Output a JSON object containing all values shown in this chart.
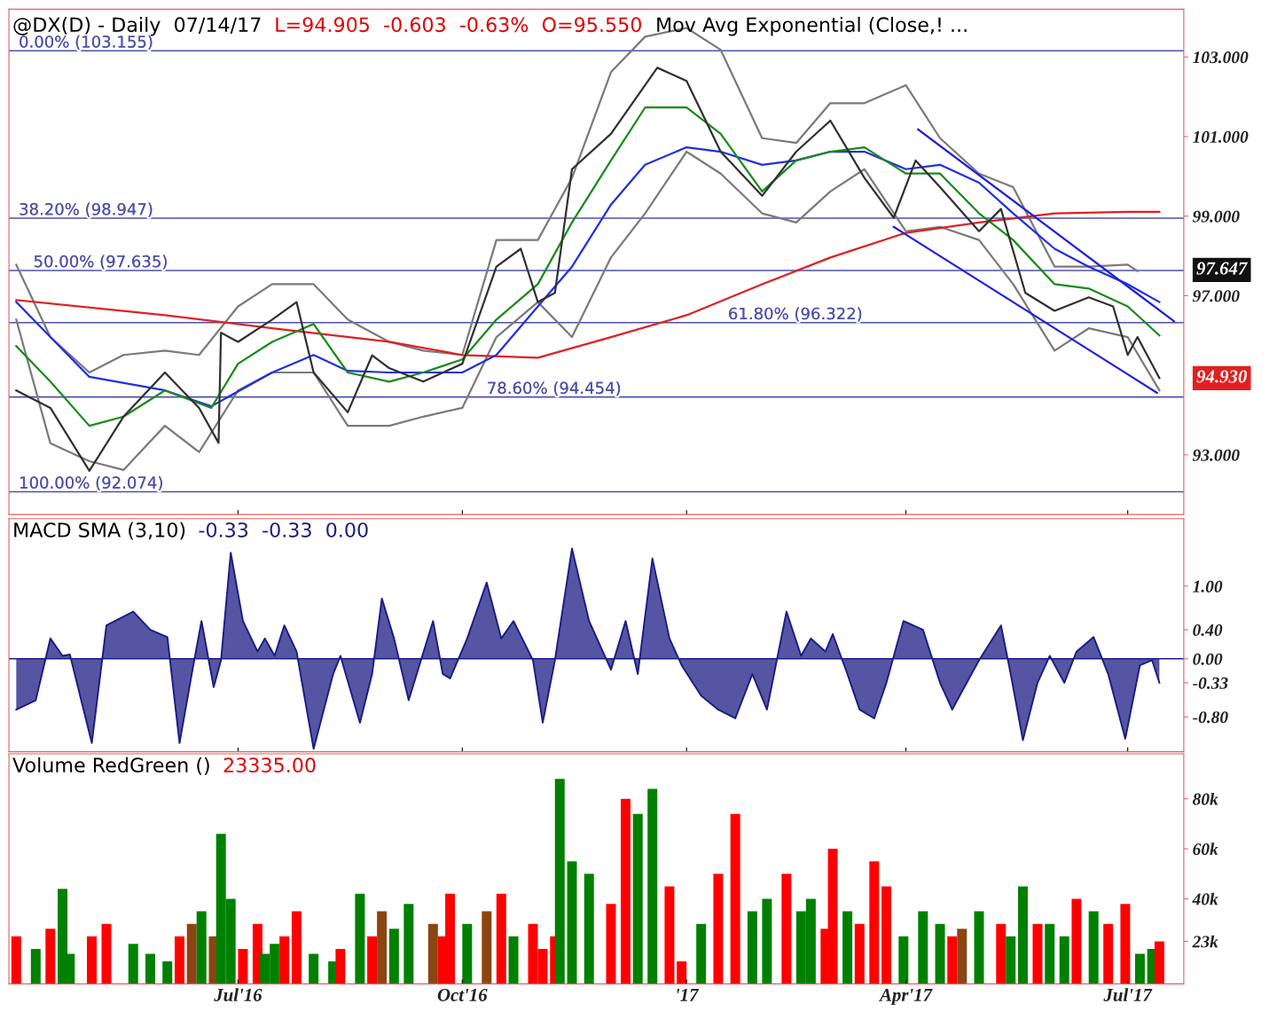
{
  "chart_data": [
    {
      "type": "line",
      "title": "@DX(D) - Daily  07/14/17",
      "subtitle": "L=94.905  -0.603  -0.63%  O=95.550",
      "tick_labels": "y",
      "grid": false,
      "legend": false,
      "xlim": [
        "2016-03-29",
        "2017-07-24"
      ],
      "xticks": [
        {
          "value": "2016-07-01",
          "label": null
        },
        {
          "value": "2016-10-01",
          "label": null
        },
        {
          "value": "2017-01-01",
          "label": null
        },
        {
          "value": "2017-04-01",
          "label": null
        },
        {
          "value": "2017-07-01",
          "label": null
        }
      ],
      "ylim": [
        91.5,
        104.2
      ],
      "yticks": [
        {
          "value": 93,
          "label": "93.000"
        },
        {
          "value": 97,
          "label": "97.000"
        },
        {
          "value": 99,
          "label": "99.000"
        },
        {
          "value": 101,
          "label": "101.000"
        },
        {
          "value": 103,
          "label": "103.000"
        }
      ],
      "annotations": [
        "Mov Avg Exponential (Close,! ...",
        {
          "text": "97.647",
          "x": "2017-07-14",
          "y": 97.647
        },
        {
          "text": "94.930",
          "x": "2017-07-14",
          "y": 94.93
        }
      ],
      "ref_lines": [
        {
          "axis": "y",
          "value": 103.155,
          "label": "0.00% (103.155)",
          "color": "#5050a8"
        },
        {
          "axis": "y",
          "value": 98.947,
          "label": "38.20% (98.947)",
          "color": "#5050a8"
        },
        {
          "axis": "y",
          "value": 97.635,
          "label": "50.00% (97.635)",
          "color": "#5050a8"
        },
        {
          "axis": "y",
          "value": 96.322,
          "label": "61.80% (96.322)",
          "color": "#5050a8"
        },
        {
          "axis": "y",
          "value": 94.454,
          "label": "78.60% (94.454)",
          "color": "#5050a8"
        },
        {
          "axis": "y",
          "value": 92.074,
          "label": "100.00% (92.074)",
          "color": "#5050a8"
        }
      ],
      "series": [
        {
          "color": "#7a7a7a",
          "x": [
            "2016-04-01",
            "2016-04-15",
            "2016-05-01",
            "2016-05-15",
            "2016-06-01",
            "2016-06-15",
            "2016-07-01",
            "2016-07-15",
            "2016-08-01",
            "2016-08-15",
            "2016-09-01",
            "2016-09-15",
            "2016-10-01",
            "2016-10-15",
            "2016-11-01",
            "2016-11-15",
            "2016-12-01",
            "2016-12-15",
            "2017-01-01",
            "2017-01-15",
            "2017-02-01",
            "2017-02-15",
            "2017-03-01",
            "2017-03-15",
            "2017-04-01",
            "2017-04-15",
            "2017-05-01",
            "2017-05-15",
            "2017-06-01",
            "2017-06-15",
            "2017-07-01",
            "2017-07-05"
          ],
          "values": [
            97.78,
            95.96,
            95.07,
            95.51,
            95.62,
            95.51,
            96.73,
            97.29,
            97.29,
            96.4,
            95.84,
            95.62,
            95.51,
            98.4,
            98.4,
            99.96,
            102.62,
            103.51,
            103.73,
            103.18,
            100.96,
            100.84,
            101.84,
            101.84,
            102.29,
            100.96,
            100.07,
            99.73,
            97.73,
            97.73,
            97.78,
            97.62
          ]
        },
        {
          "color": "#7a7a7a",
          "x": [
            "2016-04-01",
            "2016-04-15",
            "2016-05-01",
            "2016-05-15",
            "2016-06-01",
            "2016-06-15",
            "2016-07-01",
            "2016-07-15",
            "2016-08-01",
            "2016-08-15",
            "2016-09-01",
            "2016-09-15",
            "2016-10-01",
            "2016-10-15",
            "2016-11-01",
            "2016-11-15",
            "2016-12-01",
            "2016-12-15",
            "2017-01-01",
            "2017-01-15",
            "2017-02-01",
            "2017-02-15",
            "2017-03-01",
            "2017-03-15",
            "2017-04-01",
            "2017-04-15",
            "2017-05-01",
            "2017-05-15",
            "2017-06-01",
            "2017-06-15",
            "2017-07-01",
            "2017-07-14"
          ],
          "values": [
            96.4,
            93.29,
            92.84,
            92.62,
            93.73,
            93.07,
            94.62,
            95.07,
            95.07,
            93.73,
            93.73,
            93.96,
            94.18,
            95.96,
            96.84,
            95.96,
            97.96,
            99.07,
            100.62,
            100.07,
            99.07,
            98.84,
            99.62,
            100.18,
            98.62,
            98.73,
            98.4,
            97.29,
            95.62,
            96.18,
            95.96,
            94.62
          ]
        },
        {
          "color": "#e02020",
          "x": [
            "2016-04-01",
            "2016-06-01",
            "2016-07-15",
            "2016-09-01",
            "2016-10-01",
            "2016-11-01",
            "2016-12-01",
            "2017-01-01",
            "2017-02-01",
            "2017-03-01",
            "2017-04-01",
            "2017-05-01",
            "2017-06-01",
            "2017-07-01",
            "2017-07-14"
          ],
          "values": [
            96.89,
            96.51,
            96.18,
            95.84,
            95.51,
            95.44,
            95.96,
            96.51,
            97.29,
            97.96,
            98.58,
            98.84,
            99.07,
            99.11,
            99.11
          ]
        },
        {
          "color": "#2030e0",
          "x": [
            "2016-04-01",
            "2016-05-01",
            "2016-06-01",
            "2016-06-20",
            "2016-07-15",
            "2016-08-01",
            "2016-08-15",
            "2016-09-01",
            "2016-10-01",
            "2016-10-15",
            "2016-11-01",
            "2016-11-15",
            "2016-12-01",
            "2016-12-15",
            "2017-01-01",
            "2017-01-15",
            "2017-02-01",
            "2017-02-15",
            "2017-03-01",
            "2017-03-15",
            "2017-04-01",
            "2017-04-15",
            "2017-05-01",
            "2017-05-15",
            "2017-06-01",
            "2017-06-15",
            "2017-07-01",
            "2017-07-14"
          ],
          "values": [
            96.84,
            94.96,
            94.62,
            94.22,
            95.07,
            95.51,
            95.11,
            95.07,
            95.07,
            95.51,
            96.73,
            97.73,
            99.29,
            100.29,
            100.73,
            100.62,
            100.29,
            100.4,
            100.62,
            100.62,
            100.18,
            100.29,
            99.84,
            99.07,
            98.18,
            97.73,
            97.29,
            96.84
          ]
        },
        {
          "color": "#1a8a1a",
          "x": [
            "2016-04-01",
            "2016-04-15",
            "2016-05-01",
            "2016-05-15",
            "2016-06-01",
            "2016-06-20",
            "2016-07-01",
            "2016-07-15",
            "2016-08-01",
            "2016-08-15",
            "2016-09-01",
            "2016-09-15",
            "2016-10-01",
            "2016-10-15",
            "2016-11-01",
            "2016-11-15",
            "2016-12-01",
            "2016-12-15",
            "2017-01-01",
            "2017-01-15",
            "2017-02-01",
            "2017-02-15",
            "2017-03-01",
            "2017-03-15",
            "2017-04-01",
            "2017-04-15",
            "2017-05-01",
            "2017-05-15",
            "2017-06-01",
            "2017-06-15",
            "2017-07-01",
            "2017-07-14"
          ],
          "values": [
            95.73,
            94.84,
            93.73,
            93.96,
            94.62,
            94.18,
            95.29,
            95.84,
            96.29,
            95.07,
            94.84,
            95.07,
            95.4,
            96.4,
            97.29,
            98.84,
            100.4,
            101.73,
            101.73,
            101.07,
            99.62,
            100.4,
            100.62,
            100.73,
            100.07,
            100.07,
            99.07,
            98.4,
            97.29,
            97.18,
            96.73,
            96.0
          ]
        },
        {
          "color": "#303030",
          "x": [
            "2016-04-01",
            "2016-04-15",
            "2016-05-01",
            "2016-05-15",
            "2016-06-01",
            "2016-06-15",
            "2016-06-23",
            "2016-06-24",
            "2016-07-01",
            "2016-07-15",
            "2016-07-25",
            "2016-08-01",
            "2016-08-15",
            "2016-08-25",
            "2016-09-01",
            "2016-09-15",
            "2016-10-01",
            "2016-10-15",
            "2016-10-25",
            "2016-11-01",
            "2016-11-08",
            "2016-11-15",
            "2016-12-01",
            "2016-12-20",
            "2017-01-01",
            "2017-01-15",
            "2017-02-01",
            "2017-02-15",
            "2017-03-01",
            "2017-03-15",
            "2017-03-27",
            "2017-04-05",
            "2017-04-15",
            "2017-05-01",
            "2017-05-10",
            "2017-05-20",
            "2017-06-01",
            "2017-06-15",
            "2017-06-25",
            "2017-07-01",
            "2017-07-05",
            "2017-07-14"
          ],
          "values": [
            94.62,
            94.18,
            92.6,
            93.96,
            95.07,
            94.18,
            93.3,
            96.07,
            95.84,
            96.4,
            96.84,
            95.07,
            94.07,
            95.5,
            95.18,
            94.84,
            95.29,
            97.73,
            98.18,
            96.84,
            97.07,
            100.18,
            101.07,
            102.73,
            102.4,
            100.62,
            99.51,
            100.62,
            101.4,
            99.96,
            98.96,
            100.4,
            99.73,
            98.62,
            99.18,
            97.07,
            96.62,
            96.96,
            96.73,
            95.51,
            95.96,
            94.93
          ]
        },
        {
          "color": "#2020e0",
          "x": [
            "2017-04-06",
            "2017-07-20"
          ],
          "values": [
            101.18,
            96.36
          ]
        },
        {
          "color": "#2020e0",
          "x": [
            "2017-03-27",
            "2017-07-13"
          ],
          "values": [
            98.73,
            94.56
          ]
        }
      ]
    },
    {
      "type": "area",
      "title": "MACD SMA (3,10)",
      "subtitle": "-0.33  -0.33  0.00",
      "tick_labels": "y",
      "grid": false,
      "legend": false,
      "xlim": [
        "2016-03-29",
        "2017-07-24"
      ],
      "xticks": [
        {
          "value": "2016-07-01",
          "label": null
        },
        {
          "value": "2016-10-01",
          "label": null
        },
        {
          "value": "2017-01-01",
          "label": null
        },
        {
          "value": "2017-04-01",
          "label": null
        },
        {
          "value": "2017-07-01",
          "label": null
        }
      ],
      "ylim": [
        -1.28,
        1.93
      ],
      "ref_lines": [
        {
          "axis": "y",
          "value": 0,
          "label": null,
          "color": "#1c1c84"
        }
      ],
      "yticks": [
        {
          "value": -0.8,
          "label": "-0.80"
        },
        {
          "value": -0.33,
          "label": "-0.33"
        },
        {
          "value": 0,
          "label": "0.00"
        },
        {
          "value": 0.4,
          "label": "0.40"
        },
        {
          "value": 1,
          "label": "1.00"
        }
      ],
      "series": [
        {
          "color": "#1c1c84",
          "x": [
            "2016-04-01",
            "2016-04-09",
            "2016-04-15",
            "2016-04-20",
            "2016-04-23",
            "2016-05-02",
            "2016-05-08",
            "2016-05-19",
            "2016-05-26",
            "2016-06-02",
            "2016-06-07",
            "2016-06-12",
            "2016-06-16",
            "2016-06-21",
            "2016-06-24",
            "2016-06-28",
            "2016-07-03",
            "2016-07-09",
            "2016-07-12",
            "2016-07-16",
            "2016-07-20",
            "2016-07-25",
            "2016-08-01",
            "2016-08-09",
            "2016-08-12",
            "2016-08-20",
            "2016-08-25",
            "2016-08-29",
            "2016-09-03",
            "2016-09-09",
            "2016-09-19",
            "2016-09-23",
            "2016-09-26",
            "2016-10-03",
            "2016-10-11",
            "2016-10-17",
            "2016-10-22",
            "2016-10-30",
            "2016-11-03",
            "2016-11-08",
            "2016-11-15",
            "2016-11-22",
            "2016-12-01",
            "2016-12-07",
            "2016-12-12",
            "2016-12-18",
            "2016-12-25",
            "2016-12-30",
            "2017-01-07",
            "2017-01-14",
            "2017-01-21",
            "2017-01-28",
            "2017-02-03",
            "2017-02-11",
            "2017-02-17",
            "2017-02-21",
            "2017-02-27",
            "2017-03-02",
            "2017-03-08",
            "2017-03-13",
            "2017-03-19",
            "2017-03-24",
            "2017-03-31",
            "2017-04-08",
            "2017-04-15",
            "2017-04-20",
            "2017-04-24",
            "2017-05-01",
            "2017-05-10",
            "2017-05-14",
            "2017-05-19",
            "2017-05-25",
            "2017-05-30",
            "2017-06-05",
            "2017-06-10",
            "2017-06-17",
            "2017-06-23",
            "2017-06-30",
            "2017-07-06",
            "2017-07-11",
            "2017-07-14"
          ],
          "values": [
            -0.7,
            -0.57,
            0.28,
            0.04,
            0.06,
            -1.16,
            0.46,
            0.65,
            0.4,
            0.3,
            -1.16,
            -0.21,
            0.52,
            -0.39,
            -0.02,
            1.46,
            0.52,
            0.1,
            0.28,
            0.04,
            0.46,
            0.1,
            -1.24,
            -0.21,
            0.04,
            -0.88,
            -0.21,
            0.83,
            0.28,
            -0.57,
            0.52,
            -0.21,
            -0.27,
            0.28,
            1.05,
            0.28,
            0.52,
            -0.02,
            -0.88,
            -0.02,
            1.52,
            0.52,
            -0.15,
            0.52,
            -0.21,
            1.38,
            0.28,
            -0.09,
            -0.51,
            -0.7,
            -0.82,
            -0.21,
            -0.7,
            0.65,
            0.04,
            0.28,
            0.1,
            0.34,
            -0.21,
            -0.7,
            -0.82,
            -0.33,
            0.52,
            0.4,
            -0.33,
            -0.7,
            -0.45,
            -0.02,
            0.46,
            -0.21,
            -1.12,
            -0.33,
            0.04,
            -0.33,
            0.1,
            0.3,
            -0.21,
            -1.1,
            -0.09,
            -0.02,
            -0.33
          ]
        }
      ]
    },
    {
      "type": "bar",
      "title": "Volume RedGreen ()",
      "subtitle": "23335.00",
      "grid": false,
      "legend": false,
      "xlim": [
        "2016-03-29",
        "2017-07-24"
      ],
      "xticks": [
        {
          "value": "2016-07-01",
          "label": "Jul'16"
        },
        {
          "value": "2016-10-01",
          "label": "Oct'16"
        },
        {
          "value": "2017-01-01",
          "label": "'17"
        },
        {
          "value": "2017-04-01",
          "label": "Apr'17"
        },
        {
          "value": "2017-07-01",
          "label": "Jul'17"
        }
      ],
      "ylim": [
        6,
        98
      ],
      "yticks": [
        {
          "value": 23,
          "label": "23k"
        },
        {
          "value": 40,
          "label": "40k"
        },
        {
          "value": 60,
          "label": "60k"
        },
        {
          "value": 80,
          "label": "80k"
        }
      ],
      "x": [
        "2016-04-01",
        "2016-04-09",
        "2016-04-15",
        "2016-04-20",
        "2016-04-23",
        "2016-05-02",
        "2016-05-08",
        "2016-05-19",
        "2016-05-26",
        "2016-06-02",
        "2016-06-07",
        "2016-06-12",
        "2016-06-16",
        "2016-06-21",
        "2016-06-24",
        "2016-06-28",
        "2016-07-03",
        "2016-07-09",
        "2016-07-12",
        "2016-07-16",
        "2016-07-20",
        "2016-07-25",
        "2016-08-01",
        "2016-08-09",
        "2016-08-12",
        "2016-08-20",
        "2016-08-25",
        "2016-08-29",
        "2016-09-03",
        "2016-09-09",
        "2016-09-19",
        "2016-09-23",
        "2016-09-26",
        "2016-10-03",
        "2016-10-11",
        "2016-10-17",
        "2016-10-22",
        "2016-10-30",
        "2016-11-03",
        "2016-11-08",
        "2016-11-10",
        "2016-11-15",
        "2016-11-22",
        "2016-12-01",
        "2016-12-07",
        "2016-12-12",
        "2016-12-18",
        "2016-12-25",
        "2016-12-30",
        "2017-01-07",
        "2017-01-14",
        "2017-01-21",
        "2017-01-28",
        "2017-02-03",
        "2017-02-11",
        "2017-02-17",
        "2017-02-21",
        "2017-02-27",
        "2017-03-02",
        "2017-03-08",
        "2017-03-13",
        "2017-03-19",
        "2017-03-24",
        "2017-03-31",
        "2017-04-08",
        "2017-04-15",
        "2017-04-20",
        "2017-04-24",
        "2017-05-01",
        "2017-05-10",
        "2017-05-14",
        "2017-05-19",
        "2017-05-25",
        "2017-05-30",
        "2017-06-05",
        "2017-06-10",
        "2017-06-17",
        "2017-06-23",
        "2017-06-30",
        "2017-07-06",
        "2017-07-11",
        "2017-07-14"
      ],
      "values": [
        25,
        20,
        28,
        44,
        18,
        25,
        30,
        22,
        18,
        15,
        25,
        30,
        35,
        25,
        66,
        40,
        20,
        30,
        18,
        22,
        25,
        35,
        18,
        15,
        20,
        42,
        25,
        35,
        28,
        38,
        30,
        25,
        42,
        30,
        35,
        42,
        25,
        30,
        20,
        25,
        88,
        55,
        50,
        38,
        80,
        74,
        84,
        45,
        15,
        30,
        50,
        74,
        35,
        40,
        50,
        35,
        40,
        28,
        60,
        35,
        30,
        55,
        45,
        25,
        35,
        30,
        25,
        28,
        35,
        30,
        25,
        45,
        30,
        30,
        25,
        40,
        35,
        30,
        38,
        18,
        20,
        23
      ],
      "colors": [
        "#ff0000",
        "#008000",
        "#ff0000",
        "#008000",
        "#008000",
        "#ff0000",
        "#ff0000",
        "#008000",
        "#008000",
        "#008000",
        "#ff0000",
        "#8b4513",
        "#008000",
        "#8b4513",
        "#008000",
        "#008000",
        "#ff0000",
        "#ff0000",
        "#008000",
        "#008000",
        "#ff0000",
        "#ff0000",
        "#008000",
        "#008000",
        "#ff0000",
        "#008000",
        "#ff0000",
        "#8b4513",
        "#008000",
        "#008000",
        "#8b4513",
        "#ff0000",
        "#ff0000",
        "#008000",
        "#8b4513",
        "#ff0000",
        "#008000",
        "#ff0000",
        "#ff0000",
        "#ff0000",
        "#008000",
        "#008000",
        "#008000",
        "#ff0000",
        "#ff0000",
        "#008000",
        "#008000",
        "#ff0000",
        "#ff0000",
        "#008000",
        "#ff0000",
        "#ff0000",
        "#008000",
        "#008000",
        "#ff0000",
        "#008000",
        "#008000",
        "#ff0000",
        "#ff0000",
        "#008000",
        "#ff0000",
        "#ff0000",
        "#ff0000",
        "#008000",
        "#008000",
        "#008000",
        "#ff0000",
        "#8b4513",
        "#008000",
        "#ff0000",
        "#008000",
        "#008000",
        "#ff0000",
        "#008000",
        "#008000",
        "#ff0000",
        "#008000",
        "#ff0000",
        "#ff0000",
        "#008000",
        "#008000",
        "#ff0000"
      ]
    }
  ]
}
